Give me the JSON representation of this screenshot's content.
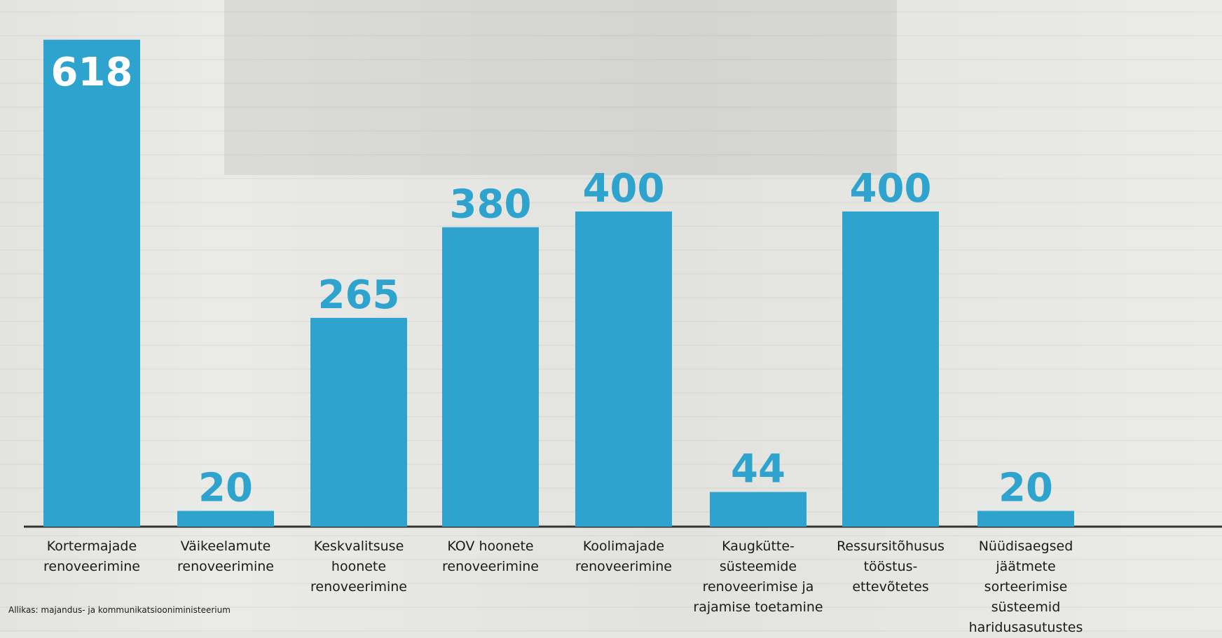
{
  "chart_data": {
    "type": "bar",
    "categories": [
      "Kortermajade\nrenoveerimine",
      "Väikeelamute\nrenoveerimine",
      "Keskvalitsuse\nhoonete\nrenoveerimine",
      "KOV hoonete\nrenoveerimine",
      "Koolimajade\nrenoveerimine",
      "Kaugkütte-\nsüsteemide\nrenoveerimise ja\nrajamise toetamine",
      "Ressursitõhusus\ntööstus-\nettevõtetes",
      "Nüüdisaegsed\njäätmete sorteerimise\nsüsteemid\nharidusasutustes"
    ],
    "values": [
      618,
      20,
      265,
      380,
      400,
      44,
      400,
      20
    ],
    "value_labels": [
      "618",
      "20",
      "265",
      "380",
      "400",
      "44",
      "400",
      "20"
    ],
    "ylim": [
      0,
      640
    ],
    "bar_color": "#2ea3cd",
    "first_label_color": "#ffffff",
    "label_color": "#2ea3cd",
    "axis_color": "#333333",
    "grid": false,
    "legend": "none"
  },
  "source": "Allikas: majandus- ja kommunikatsiooniministeerium"
}
